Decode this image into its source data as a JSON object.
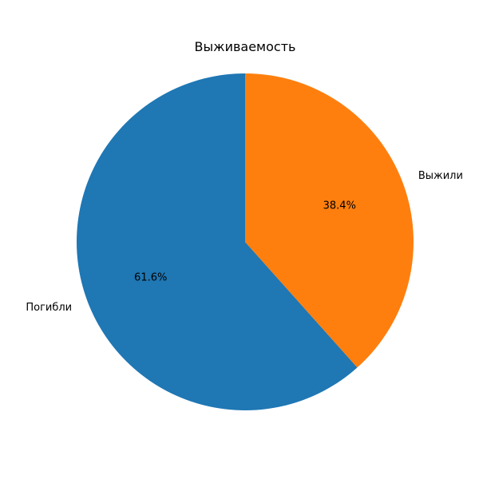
{
  "chart_data": {
    "type": "pie",
    "title": "Выживаемость",
    "labels": [
      "Погибли",
      "Выжили"
    ],
    "values": [
      61.6,
      38.4
    ],
    "percent_labels": [
      "61.6%",
      "38.4%"
    ],
    "colors": [
      "#1f77b4",
      "#ff7f0e"
    ],
    "start_angle_deg": 90,
    "direction": "counterclockwise"
  }
}
